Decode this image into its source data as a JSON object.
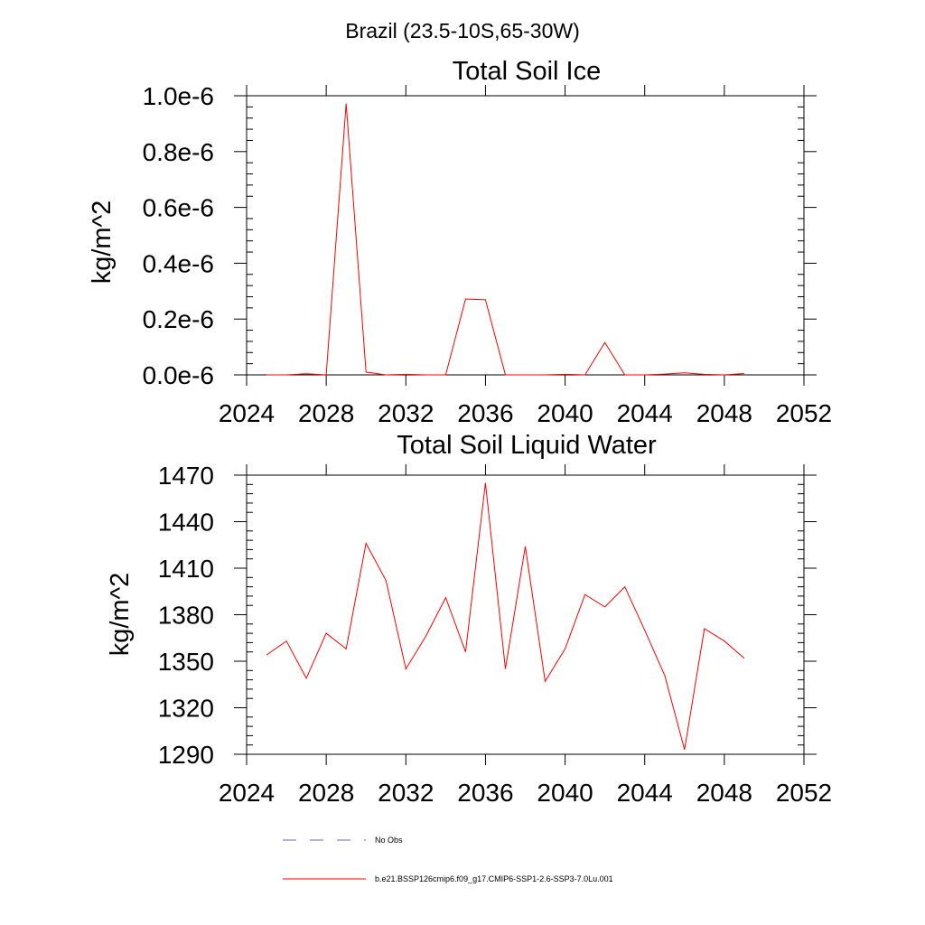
{
  "figure": {
    "suptitle": "Brazil (23.5-10S,65-30W)"
  },
  "colors": {
    "series": "#ff0000",
    "obs": "#6a6aaa",
    "axis": "#000000"
  },
  "chart_data": [
    {
      "type": "line",
      "title": "Total Soil Ice",
      "ylabel": "kg/m^2",
      "xlabel": "",
      "xlim": [
        2024,
        2052
      ],
      "ylim": [
        0,
        1e-06
      ],
      "xticks": [
        2024,
        2028,
        2032,
        2036,
        2040,
        2044,
        2048,
        2052
      ],
      "xtick_labels": [
        "2024",
        "2028",
        "2032",
        "2036",
        "2040",
        "2044",
        "2048",
        "2052"
      ],
      "yticks": [
        0,
        2e-07,
        4e-07,
        6e-07,
        8e-07,
        1e-06
      ],
      "ytick_labels": [
        "0.0e-6",
        "0.2e-6",
        "0.4e-6",
        "0.6e-6",
        "0.8e-6",
        "1.0e-6"
      ],
      "x": [
        2025,
        2026,
        2027,
        2028,
        2029,
        2030,
        2031,
        2032,
        2033,
        2034,
        2035,
        2036,
        2037,
        2038,
        2039,
        2040,
        2041,
        2042,
        2043,
        2044,
        2045,
        2046,
        2047,
        2048,
        2049
      ],
      "series": [
        {
          "name": "b.e21.BSSP126cmip6.f09_g17.CMIP6-SSP1-2.6-SSP3-7.0Lu.001",
          "values": [
            0,
            0,
            4e-09,
            0,
            9.72e-07,
            1e-08,
            0,
            2e-09,
            0,
            0,
            2.72e-07,
            2.69e-07,
            0,
            0,
            0,
            2e-09,
            0,
            1.16e-07,
            0,
            0,
            3e-09,
            7e-09,
            2e-09,
            0,
            5e-09
          ]
        }
      ]
    },
    {
      "type": "line",
      "title": "Total Soil Liquid Water",
      "ylabel": "kg/m^2",
      "xlabel": "",
      "xlim": [
        2024,
        2052
      ],
      "ylim": [
        1290,
        1470
      ],
      "xticks": [
        2024,
        2028,
        2032,
        2036,
        2040,
        2044,
        2048,
        2052
      ],
      "xtick_labels": [
        "2024",
        "2028",
        "2032",
        "2036",
        "2040",
        "2044",
        "2048",
        "2052"
      ],
      "yticks": [
        1290,
        1320,
        1350,
        1380,
        1410,
        1440,
        1470
      ],
      "ytick_labels": [
        "1290",
        "1320",
        "1350",
        "1380",
        "1410",
        "1440",
        "1470"
      ],
      "x": [
        2025,
        2026,
        2027,
        2028,
        2029,
        2030,
        2031,
        2032,
        2033,
        2034,
        2035,
        2036,
        2037,
        2038,
        2039,
        2040,
        2041,
        2042,
        2043,
        2044,
        2045,
        2046,
        2047,
        2048,
        2049
      ],
      "series": [
        {
          "name": "b.e21.BSSP126cmip6.f09_g17.CMIP6-SSP1-2.6-SSP3-7.0Lu.001",
          "values": [
            1354,
            1363,
            1339,
            1368,
            1358,
            1426,
            1402,
            1345,
            1366,
            1391,
            1356,
            1465,
            1345,
            1424,
            1337,
            1358,
            1393,
            1385,
            1398,
            1370,
            1341,
            1293,
            1371,
            1363,
            1352
          ]
        }
      ]
    }
  ],
  "legend": {
    "items": [
      {
        "label": "No Obs",
        "style": "dashed"
      },
      {
        "label": "b.e21.BSSP126cmip6.f09_g17.CMIP6-SSP1-2.6-SSP3-7.0Lu.001",
        "style": "solid"
      }
    ]
  }
}
